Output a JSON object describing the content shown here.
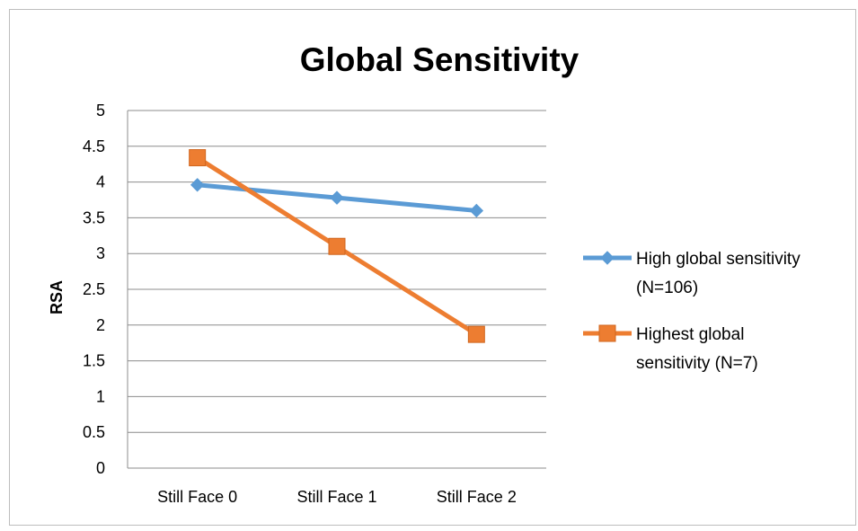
{
  "chart_data": {
    "type": "line",
    "title": "Global Sensitivity",
    "xlabel": "",
    "ylabel": "RSA",
    "categories": [
      "Still Face 0",
      "Still Face 1",
      "Still Face 2"
    ],
    "ylim": [
      0,
      5
    ],
    "yticks": [
      "0",
      "0.5",
      "1",
      "1.5",
      "2",
      "2.5",
      "3",
      "3.5",
      "4",
      "4.5",
      "5"
    ],
    "grid": true,
    "legend_position": "right",
    "series": [
      {
        "name": "High global sensitivity (N=106)",
        "legend_lines": [
          "High global sensitivity",
          "(N=106)"
        ],
        "values": [
          3.96,
          3.78,
          3.6
        ],
        "color": "#5B9BD5",
        "marker": "diamond"
      },
      {
        "name": "Highest global sensitivity (N=7)",
        "legend_lines": [
          "Highest global",
          "sensitivity (N=7)"
        ],
        "values": [
          4.34,
          3.1,
          1.87
        ],
        "color": "#ED7D31",
        "marker": "square"
      }
    ]
  }
}
